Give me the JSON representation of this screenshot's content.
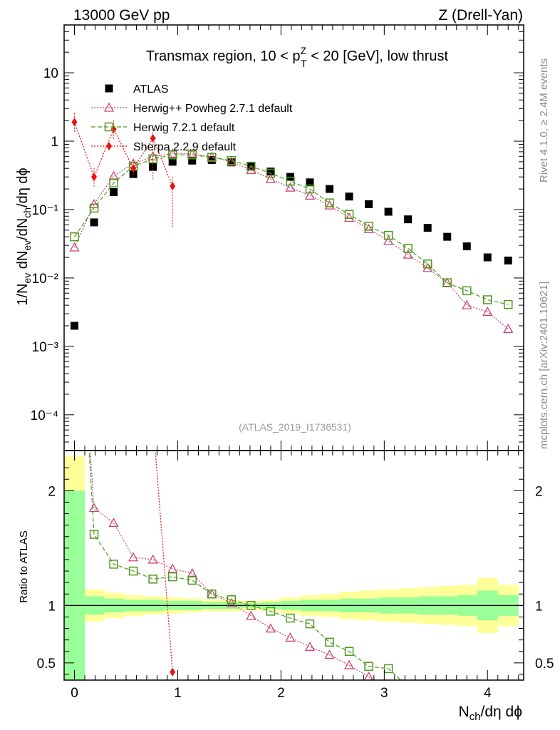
{
  "header": {
    "left": "13000 GeV pp",
    "right": "Z (Drell-Yan)"
  },
  "side_labels": {
    "rivet": "Rivet 4.1.0, ≥ 2.4M events",
    "mcplots": "mcplots.cern.ch [arXiv:2401.10621]"
  },
  "chart_data": [
    {
      "type": "scatter",
      "title_main": "Transmax region, 10 < p",
      "title_sup": "Z",
      "title_sub": "T",
      "title_end": " < 20 [GeV], low thrust",
      "ylabel": "1/N_ev dN_ev/dN_ch/dη dϕ",
      "yscale": "log",
      "ylim": [
        3e-05,
        50
      ],
      "xlim": [
        -0.1,
        4.35
      ],
      "ticks_y": [
        "10⁻⁴",
        "10⁻³",
        "10⁻²",
        "10⁻¹",
        "1",
        "10"
      ],
      "analysis_tag": "(ATLAS_2019_I1736531)",
      "series": [
        {
          "name": "ATLAS",
          "color": "#000000",
          "marker": "square-filled",
          "x": [
            0.0,
            0.19,
            0.38,
            0.57,
            0.76,
            0.95,
            1.14,
            1.33,
            1.52,
            1.71,
            1.9,
            2.09,
            2.28,
            2.47,
            2.66,
            2.85,
            3.04,
            3.23,
            3.42,
            3.61,
            3.8,
            4.0,
            4.2
          ],
          "y": [
            0.002,
            0.065,
            0.18,
            0.33,
            0.42,
            0.5,
            0.52,
            0.53,
            0.49,
            0.43,
            0.36,
            0.3,
            0.25,
            0.2,
            0.155,
            0.12,
            0.093,
            0.072,
            0.054,
            0.04,
            0.029,
            0.02,
            0.018
          ]
        },
        {
          "name": "Herwig++ Powheg 2.7.1 default",
          "color": "#cc4477",
          "marker": "triangle-open",
          "x": [
            0.0,
            0.19,
            0.38,
            0.57,
            0.76,
            0.95,
            1.14,
            1.33,
            1.52,
            1.71,
            1.9,
            2.09,
            2.28,
            2.47,
            2.66,
            2.85,
            3.04,
            3.23,
            3.42,
            3.61,
            3.8,
            4.0,
            4.2
          ],
          "y": [
            0.028,
            0.12,
            0.31,
            0.47,
            0.6,
            0.66,
            0.65,
            0.59,
            0.5,
            0.38,
            0.28,
            0.21,
            0.16,
            0.115,
            0.076,
            0.052,
            0.035,
            0.022,
            0.014,
            0.0085,
            0.004,
            0.0032,
            0.0018
          ]
        },
        {
          "name": "Herwig 7.2.1 default",
          "color": "#4d9a1c",
          "marker": "square-open",
          "x": [
            0.0,
            0.19,
            0.38,
            0.57,
            0.76,
            0.95,
            1.14,
            1.33,
            1.52,
            1.71,
            1.9,
            2.09,
            2.28,
            2.47,
            2.66,
            2.85,
            3.04,
            3.23,
            3.42,
            3.61,
            3.8,
            4.0,
            4.2
          ],
          "y": [
            0.04,
            0.105,
            0.245,
            0.43,
            0.55,
            0.63,
            0.63,
            0.58,
            0.52,
            0.43,
            0.34,
            0.26,
            0.2,
            0.125,
            0.085,
            0.057,
            0.042,
            0.027,
            0.016,
            0.0085,
            0.0065,
            0.0048,
            0.0041
          ]
        },
        {
          "name": "Sherpa 2.2.9 default",
          "color": "#ee1111",
          "marker": "diamond-filled",
          "x": [
            0.0,
            0.19,
            0.38,
            0.57,
            0.76,
            0.95
          ],
          "y": [
            1.9,
            0.3,
            1.5,
            0.4,
            1.1,
            0.22
          ]
        }
      ]
    },
    {
      "type": "scatter",
      "ylabel": "Ratio to ATLAS",
      "xlabel": "N_ch/dη dϕ",
      "ylim": [
        0.35,
        2.35
      ],
      "xlim": [
        -0.1,
        4.35
      ],
      "ticks_x": [
        "0",
        "1",
        "2",
        "3",
        "4"
      ],
      "ticks_y": [
        "0.5",
        "1",
        "2"
      ],
      "band_edges": [
        -0.1,
        0.1,
        0.29,
        0.48,
        0.67,
        0.86,
        1.05,
        1.24,
        1.43,
        1.62,
        1.81,
        2.0,
        2.19,
        2.38,
        2.57,
        2.76,
        2.95,
        3.14,
        3.33,
        3.52,
        3.71,
        3.9,
        4.1,
        4.3
      ],
      "band_stat_up": [
        1.0,
        0.08,
        0.06,
        0.05,
        0.05,
        0.04,
        0.04,
        0.03,
        0.03,
        0.02,
        0.03,
        0.04,
        0.05,
        0.05,
        0.06,
        0.06,
        0.07,
        0.07,
        0.08,
        0.08,
        0.09,
        0.13,
        0.09
      ],
      "band_total_up": [
        1.3,
        0.14,
        0.11,
        0.09,
        0.08,
        0.07,
        0.06,
        0.05,
        0.05,
        0.04,
        0.05,
        0.07,
        0.09,
        0.1,
        0.12,
        0.13,
        0.14,
        0.15,
        0.16,
        0.17,
        0.18,
        0.24,
        0.18
      ],
      "series": [
        {
          "name": "Herwig++ Powheg 2.7.1 default",
          "color": "#cc4477",
          "x": [
            0.19,
            0.38,
            0.57,
            0.76,
            0.95,
            1.14,
            1.33,
            1.52,
            1.71,
            1.9,
            2.09,
            2.28,
            2.47,
            2.66,
            2.85
          ],
          "y": [
            1.85,
            1.72,
            1.42,
            1.4,
            1.32,
            1.28,
            1.1,
            1.02,
            0.91,
            0.8,
            0.72,
            0.64,
            0.57,
            0.48,
            0.38
          ]
        },
        {
          "name": "Herwig 7.2.1 default",
          "color": "#4d9a1c",
          "x": [
            0.19,
            0.38,
            0.57,
            0.76,
            0.95,
            1.14,
            1.33,
            1.52,
            1.71,
            1.9,
            2.09,
            2.28,
            2.47,
            2.66,
            2.85,
            3.04
          ],
          "y": [
            1.62,
            1.36,
            1.3,
            1.23,
            1.25,
            1.22,
            1.1,
            1.05,
            1.0,
            0.95,
            0.89,
            0.84,
            0.68,
            0.6,
            0.47,
            0.45
          ]
        },
        {
          "name": "Sherpa 2.2.9 default",
          "color": "#ee1111",
          "x": [
            0.95
          ],
          "y": [
            0.42
          ]
        }
      ]
    }
  ]
}
